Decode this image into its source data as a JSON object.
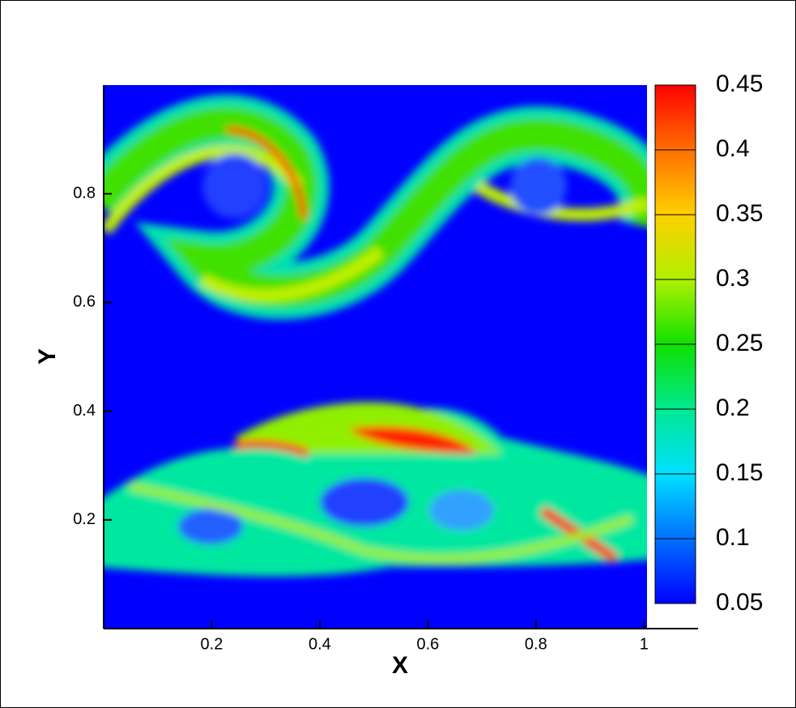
{
  "chart_data": {
    "type": "contour",
    "x_label": "X",
    "y_label": "Y",
    "xlim": [
      0,
      1.1
    ],
    "ylim": [
      0,
      1
    ],
    "xticks": [
      0.2,
      0.4,
      0.6,
      0.8,
      1
    ],
    "yticks": [
      0.2,
      0.4,
      0.6,
      0.8
    ],
    "colorbar": {
      "ticks": [
        0.05,
        0.1,
        0.15,
        0.2,
        0.25,
        0.3,
        0.35,
        0.4,
        0.45
      ],
      "colors": [
        "#0000ff",
        "#0070ff",
        "#00e0ff",
        "#00e890",
        "#10e000",
        "#b0f000",
        "#ffd000",
        "#ff7000",
        "#ff0000"
      ]
    }
  }
}
